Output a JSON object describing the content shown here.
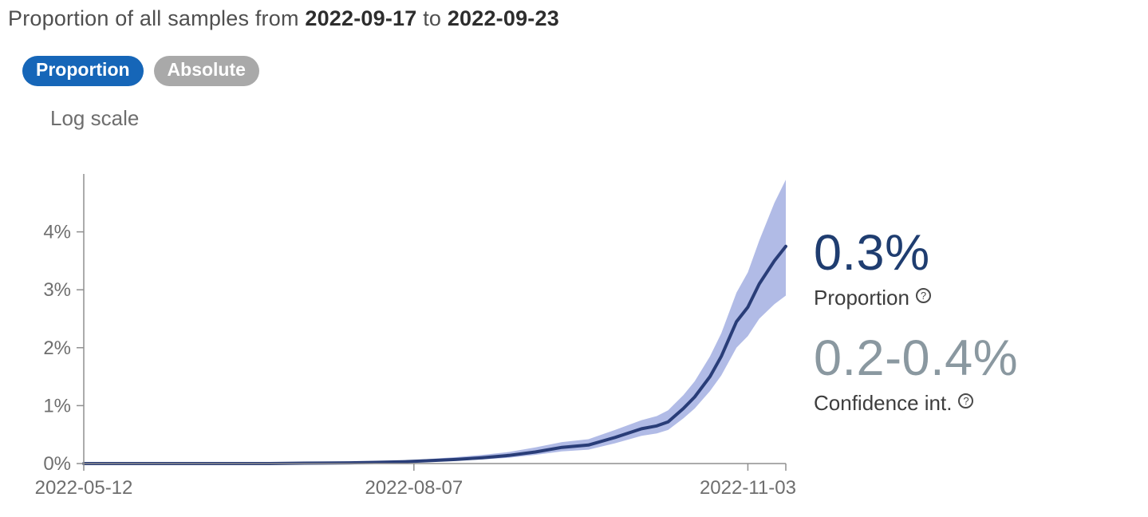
{
  "title": {
    "prefix": "Proportion of all samples from",
    "date_from": "2022-09-17",
    "middle": "to",
    "date_to": "2022-09-23"
  },
  "toggles": {
    "proportion_label": "Proportion",
    "absolute_label": "Absolute",
    "log_scale_label": "Log scale"
  },
  "stats": {
    "proportion_value": "0.3%",
    "proportion_label": "Proportion",
    "ci_value": "0.2-0.4%",
    "ci_label": "Confidence int.",
    "help_icon": "?"
  },
  "colors": {
    "accent_blue": "#1666b8",
    "inactive_gray": "#a9a9a9",
    "line": "#293d78",
    "band": "#b1bbe6",
    "value_navy": "#1f3d70",
    "ci_gray": "#8a98a0",
    "axis_gray": "#8f8f8f",
    "tick_text_gray": "#6e6e6e"
  },
  "chart_data": {
    "type": "area",
    "title": "Proportion of all samples",
    "xlabel": "",
    "ylabel": "",
    "legend": "none",
    "grid": false,
    "x_domain": [
      "2022-05-12",
      "2022-11-13"
    ],
    "ylim": [
      0,
      5
    ],
    "y_ticks": [
      0,
      1,
      2,
      3,
      4
    ],
    "y_tick_suffix": "%",
    "x_ticks": [
      "2022-05-12",
      "2022-08-07",
      "2022-11-03"
    ],
    "x": [
      "2022-05-12",
      "2022-05-19",
      "2022-05-26",
      "2022-06-02",
      "2022-06-09",
      "2022-06-16",
      "2022-06-23",
      "2022-06-30",
      "2022-07-07",
      "2022-07-14",
      "2022-07-21",
      "2022-07-28",
      "2022-08-04",
      "2022-08-11",
      "2022-08-18",
      "2022-08-25",
      "2022-09-01",
      "2022-09-08",
      "2022-09-15",
      "2022-09-22",
      "2022-09-29",
      "2022-10-06",
      "2022-10-10",
      "2022-10-13",
      "2022-10-17",
      "2022-10-20",
      "2022-10-24",
      "2022-10-27",
      "2022-10-31",
      "2022-11-03",
      "2022-11-06",
      "2022-11-10",
      "2022-11-13"
    ],
    "series": [
      {
        "name": "proportion",
        "values": [
          0,
          0,
          0,
          0,
          0,
          0,
          0,
          0,
          0.005,
          0.008,
          0.012,
          0.02,
          0.03,
          0.05,
          0.07,
          0.1,
          0.14,
          0.2,
          0.28,
          0.32,
          0.45,
          0.6,
          0.65,
          0.72,
          0.95,
          1.15,
          1.5,
          1.85,
          2.45,
          2.7,
          3.1,
          3.5,
          3.75
        ]
      },
      {
        "name": "ci_lower",
        "values": [
          0,
          0,
          0,
          0,
          0,
          0,
          0,
          0,
          0.002,
          0.004,
          0.006,
          0.01,
          0.02,
          0.03,
          0.05,
          0.07,
          0.1,
          0.15,
          0.21,
          0.24,
          0.35,
          0.48,
          0.52,
          0.58,
          0.78,
          0.95,
          1.25,
          1.52,
          2.0,
          2.2,
          2.5,
          2.75,
          2.9
        ]
      },
      {
        "name": "ci_upper",
        "values": [
          0,
          0,
          0,
          0,
          0,
          0,
          0,
          0,
          0.01,
          0.015,
          0.02,
          0.035,
          0.05,
          0.08,
          0.11,
          0.15,
          0.2,
          0.28,
          0.37,
          0.42,
          0.58,
          0.75,
          0.82,
          0.92,
          1.18,
          1.42,
          1.85,
          2.25,
          2.95,
          3.3,
          3.85,
          4.5,
          4.9
        ]
      }
    ]
  }
}
